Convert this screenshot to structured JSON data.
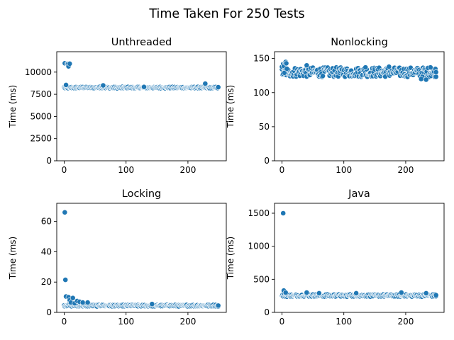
{
  "title": "Time Taken For 250 Tests",
  "colors": {
    "points": "#1f77b4"
  },
  "chart_data": [
    {
      "type": "scatter",
      "title": "Unthreaded",
      "ylabel": "Time (ms)",
      "xlim": [
        -12,
        262
      ],
      "ylim": [
        0,
        12300
      ],
      "xticks": [
        0,
        100,
        200
      ],
      "yticks": [
        0,
        2500,
        5000,
        7500,
        10000
      ],
      "x_max": 249,
      "baseline": 8250,
      "noise": 90,
      "points": [
        [
          1,
          11000
        ],
        [
          3,
          8550
        ],
        [
          5,
          10950
        ],
        [
          6,
          10900
        ],
        [
          7,
          10650
        ],
        [
          9,
          10950
        ],
        [
          63,
          8500
        ],
        [
          129,
          8330
        ],
        [
          228,
          8700
        ],
        [
          249,
          8300
        ]
      ]
    },
    {
      "type": "scatter",
      "title": "Nonlocking",
      "ylabel": "Time (ms)",
      "xlim": [
        -12,
        262
      ],
      "ylim": [
        0,
        160
      ],
      "xticks": [
        0,
        100,
        200
      ],
      "yticks": [
        0,
        50,
        100,
        150
      ],
      "x_max": 249,
      "baseline": 130,
      "noise": 7,
      "points": [
        [
          0,
          138
        ],
        [
          2,
          142
        ],
        [
          3,
          139
        ],
        [
          4,
          129
        ],
        [
          5,
          144
        ],
        [
          6,
          145
        ],
        [
          7,
          143
        ],
        [
          8,
          135
        ],
        [
          40,
          140
        ],
        [
          135,
          137
        ],
        [
          173,
          138
        ],
        [
          225,
          120
        ],
        [
          233,
          119
        ],
        [
          240,
          137
        ],
        [
          249,
          130
        ]
      ]
    },
    {
      "type": "scatter",
      "title": "Locking",
      "ylabel": "Time (ms)",
      "xlim": [
        -12,
        262
      ],
      "ylim": [
        0,
        72
      ],
      "xticks": [
        0,
        100,
        200
      ],
      "yticks": [
        0,
        20,
        40,
        60
      ],
      "x_max": 249,
      "baseline": 4.5,
      "noise": 0.6,
      "points": [
        [
          1,
          66
        ],
        [
          2,
          21.5
        ],
        [
          3,
          10.5
        ],
        [
          7,
          10
        ],
        [
          9,
          8
        ],
        [
          11,
          6.5
        ],
        [
          14,
          9.5
        ],
        [
          17,
          6
        ],
        [
          21,
          7.5
        ],
        [
          25,
          7
        ],
        [
          30,
          6.5
        ],
        [
          38,
          6.5
        ],
        [
          142,
          5.5
        ],
        [
          249,
          4.5
        ]
      ]
    },
    {
      "type": "scatter",
      "title": "Java",
      "ylabel": "Time (ms)",
      "xlim": [
        -12,
        262
      ],
      "ylim": [
        0,
        1650
      ],
      "xticks": [
        0,
        100,
        200
      ],
      "yticks": [
        0,
        500,
        1000,
        1500
      ],
      "x_max": 249,
      "baseline": 255,
      "noise": 18,
      "points": [
        [
          2,
          1500
        ],
        [
          3,
          330
        ],
        [
          6,
          300
        ],
        [
          40,
          300
        ],
        [
          60,
          290
        ],
        [
          120,
          290
        ],
        [
          193,
          300
        ],
        [
          233,
          290
        ],
        [
          249,
          260
        ]
      ]
    }
  ]
}
